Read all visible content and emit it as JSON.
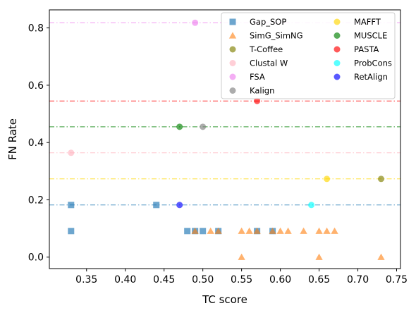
{
  "chart_data": {
    "type": "scatter",
    "title": "",
    "xlabel": "TC score",
    "ylabel": "FN Rate",
    "xlim": [
      0.302,
      0.755
    ],
    "ylim": [
      -0.04,
      0.863
    ],
    "x_ticks": [
      0.35,
      0.4,
      0.45,
      0.5,
      0.55,
      0.6,
      0.65,
      0.7,
      0.75
    ],
    "x_tick_labels": [
      "0.35",
      "0.40",
      "0.45",
      "0.50",
      "0.55",
      "0.60",
      "0.65",
      "0.70",
      "0.75"
    ],
    "y_ticks": [
      0.0,
      0.2,
      0.4,
      0.6,
      0.8
    ],
    "y_tick_labels": [
      "0.0",
      "0.2",
      "0.4",
      "0.6",
      "0.8"
    ],
    "grid": false,
    "legend_position": "top-right",
    "legend_columns": 2,
    "series": [
      {
        "name": "Gap_SOP",
        "marker": "square",
        "color": "#1f77b4",
        "hline": 0.182,
        "points": [
          [
            0.33,
            0.182
          ],
          [
            0.33,
            0.091
          ],
          [
            0.44,
            0.182
          ],
          [
            0.48,
            0.091
          ],
          [
            0.49,
            0.091
          ],
          [
            0.5,
            0.091
          ],
          [
            0.52,
            0.091
          ],
          [
            0.57,
            0.091
          ],
          [
            0.59,
            0.091
          ]
        ]
      },
      {
        "name": "SimG_SimNG",
        "marker": "triangle",
        "color": "#ff7f0e",
        "hline": null,
        "points": [
          [
            0.49,
            0.091
          ],
          [
            0.51,
            0.091
          ],
          [
            0.52,
            0.091
          ],
          [
            0.55,
            0.091
          ],
          [
            0.56,
            0.091
          ],
          [
            0.57,
            0.091
          ],
          [
            0.59,
            0.091
          ],
          [
            0.6,
            0.091
          ],
          [
            0.61,
            0.091
          ],
          [
            0.63,
            0.091
          ],
          [
            0.65,
            0.091
          ],
          [
            0.66,
            0.091
          ],
          [
            0.67,
            0.091
          ],
          [
            0.55,
            0.0
          ],
          [
            0.65,
            0.0
          ],
          [
            0.73,
            0.0
          ]
        ]
      },
      {
        "name": "T-Coffee",
        "marker": "circle",
        "color": "#808000",
        "hline": null,
        "points": [
          [
            0.73,
            0.273
          ]
        ]
      },
      {
        "name": "Clustal W",
        "marker": "circle",
        "color": "#ffb6c1",
        "hline": 0.364,
        "points": [
          [
            0.33,
            0.364
          ]
        ]
      },
      {
        "name": "FSA",
        "marker": "circle",
        "color": "#ee82ee",
        "hline": 0.818,
        "points": [
          [
            0.49,
            0.818
          ]
        ]
      },
      {
        "name": "Kalign",
        "marker": "circle",
        "color": "#808080",
        "hline": null,
        "points": [
          [
            0.5,
            0.455
          ]
        ]
      },
      {
        "name": "MAFFT",
        "marker": "circle",
        "color": "#ffd700",
        "hline": 0.273,
        "points": [
          [
            0.66,
            0.273
          ]
        ]
      },
      {
        "name": "MUSCLE",
        "marker": "circle",
        "color": "#008000",
        "hline": 0.455,
        "points": [
          [
            0.47,
            0.455
          ]
        ]
      },
      {
        "name": "PASTA",
        "marker": "circle",
        "color": "#ff0000",
        "hline": 0.545,
        "points": [
          [
            0.57,
            0.545
          ]
        ]
      },
      {
        "name": "ProbCons",
        "marker": "circle",
        "color": "#00ffff",
        "hline": null,
        "points": [
          [
            0.64,
            0.182
          ]
        ]
      },
      {
        "name": "RetAlign",
        "marker": "circle",
        "color": "#0000ff",
        "hline": null,
        "points": [
          [
            0.47,
            0.182
          ]
        ]
      }
    ]
  }
}
